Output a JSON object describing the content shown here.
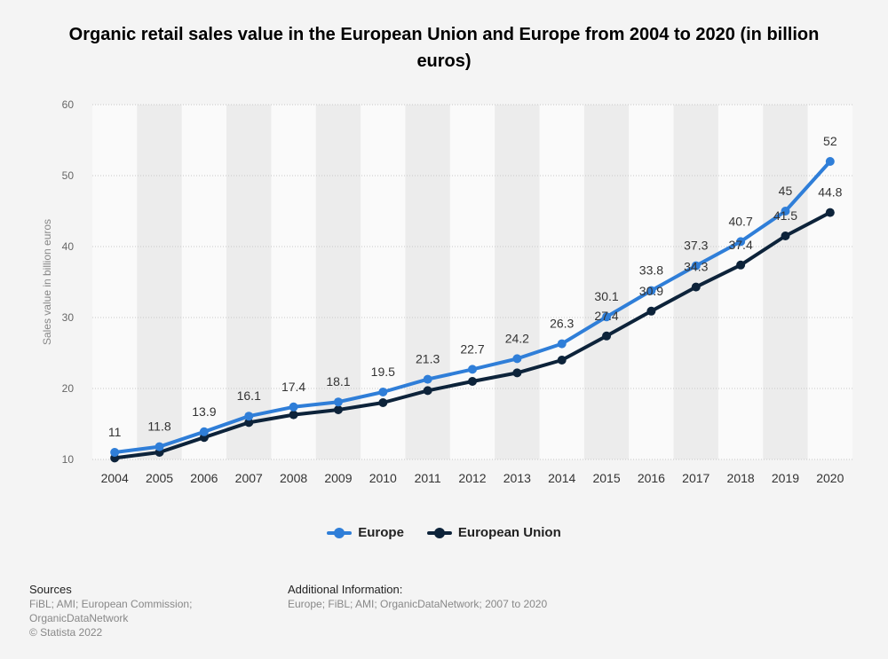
{
  "title": "Organic retail sales value in the European Union and Europe from 2004 to 2020 (in billion euros)",
  "colors": {
    "europe": "#2f7ed8",
    "eu": "#0d233a",
    "grid": "#c8c8c8",
    "band": "#ececec"
  },
  "chart_data": {
    "type": "line",
    "title": "Organic retail sales value in the European Union and Europe from 2004 to 2020 (in billion euros)",
    "xlabel": "",
    "ylabel": "Sales value in billion euros",
    "ylim": [
      10,
      60
    ],
    "yticks": [
      "10",
      "20",
      "30",
      "40",
      "50",
      "60"
    ],
    "grid": true,
    "legend": "bottom",
    "categories": [
      "2004",
      "2005",
      "2006",
      "2007",
      "2008",
      "2009",
      "2010",
      "2011",
      "2012",
      "2013",
      "2014",
      "2015",
      "2016",
      "2017",
      "2018",
      "2019",
      "2020"
    ],
    "series": [
      {
        "name": "Europe",
        "values": [
          11,
          11.8,
          13.9,
          16.1,
          17.4,
          18.1,
          19.5,
          21.3,
          22.7,
          24.2,
          26.3,
          30.1,
          33.8,
          37.3,
          40.7,
          45,
          52
        ],
        "labels": [
          "11",
          "11.8",
          "13.9",
          "16.1",
          "17.4",
          "18.1",
          "19.5",
          "21.3",
          "22.7",
          "24.2",
          "26.3",
          "30.1",
          "33.8",
          "37.3",
          "40.7",
          "45",
          "52"
        ]
      },
      {
        "name": "European Union",
        "values": [
          10.2,
          11,
          13.1,
          15.2,
          16.3,
          17,
          18,
          19.7,
          21,
          22.2,
          24,
          27.4,
          30.9,
          34.3,
          37.4,
          41.5,
          44.8
        ],
        "labels": [
          "",
          "",
          "",
          "",
          "",
          "",
          "",
          "",
          "",
          "",
          "",
          "27.4",
          "30.9",
          "34.3",
          "37.4",
          "41.5",
          "44.8"
        ]
      }
    ]
  },
  "legend": {
    "europe": "Europe",
    "eu": "European Union"
  },
  "footer": {
    "sources_heading": "Sources",
    "sources_line1": "FiBL; AMI; European Commission;",
    "sources_line2": "OrganicDataNetwork",
    "copyright": "© Statista 2022",
    "additional_heading": "Additional Information:",
    "additional_text": "Europe; FiBL; AMI; OrganicDataNetwork; 2007 to 2020"
  }
}
